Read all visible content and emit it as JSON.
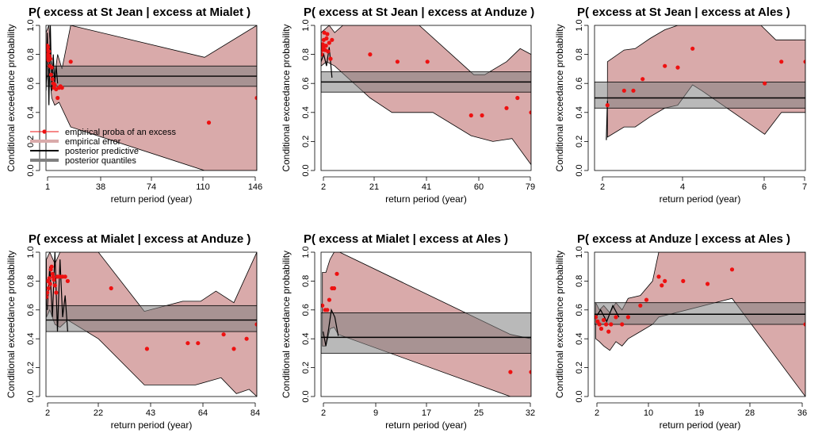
{
  "figure": {
    "ylabel": "Conditional exceedance probability",
    "xlabel": "return period (year)",
    "legend": [
      "empirical proba of an excess",
      "empirical error",
      "posterior predictive",
      "posterior quantiles"
    ],
    "colors": {
      "band": "#d9aaaa",
      "quantile_band": "#808080",
      "overlap": "#8c5050",
      "points": "#ee1111",
      "line": "#000000"
    }
  },
  "chart_data": [
    {
      "type": "scatter",
      "title": "P( excess at St Jean |   excess at Mialet )",
      "xticks": [
        "1",
        "38",
        "74",
        "110",
        "146"
      ],
      "yticks": [
        "0.0",
        "0.2",
        "0.4",
        "0.6",
        "0.8",
        "1.0"
      ],
      "xlim": [
        1,
        146
      ],
      "ylim": [
        0,
        1
      ],
      "points": [
        [
          1.2,
          0.78
        ],
        [
          1.5,
          0.83
        ],
        [
          1.8,
          0.86
        ],
        [
          2.1,
          0.8
        ],
        [
          2.4,
          0.85
        ],
        [
          2.7,
          0.76
        ],
        [
          3,
          0.82
        ],
        [
          3.3,
          0.79
        ],
        [
          3.6,
          0.72
        ],
        [
          4,
          0.77
        ],
        [
          4.5,
          0.66
        ],
        [
          5,
          0.71
        ],
        [
          5.5,
          0.63
        ],
        [
          6,
          0.6
        ],
        [
          6.5,
          0.57
        ],
        [
          7,
          0.59
        ],
        [
          8,
          0.56
        ],
        [
          9,
          0.5
        ],
        [
          10,
          0.57
        ],
        [
          11,
          0.58
        ],
        [
          12,
          0.57
        ],
        [
          18,
          0.75
        ],
        [
          113,
          0.33
        ],
        [
          146,
          0.5
        ]
      ],
      "band_upper": [
        [
          1,
          0.95
        ],
        [
          3,
          1.0
        ],
        [
          5,
          0.7
        ],
        [
          7,
          0.65
        ],
        [
          9,
          0.8
        ],
        [
          12,
          0.7
        ],
        [
          18,
          1.0
        ],
        [
          110,
          0.78
        ],
        [
          146,
          1.0
        ]
      ],
      "band_lower": [
        [
          1,
          0.6
        ],
        [
          3,
          0.7
        ],
        [
          5,
          0.5
        ],
        [
          7,
          0.45
        ],
        [
          10,
          0.47
        ],
        [
          18,
          0.3
        ],
        [
          110,
          0.0
        ],
        [
          146,
          0.0
        ]
      ],
      "quantile_band": [
        0.58,
        0.72
      ],
      "predictive": 0.65,
      "predictive_spike": [
        [
          1,
          0.55
        ],
        [
          2,
          0.95
        ],
        [
          3,
          0.45
        ],
        [
          4,
          1.0
        ],
        [
          5,
          0.55
        ],
        [
          6,
          0.8
        ],
        [
          7,
          0.6
        ],
        [
          8,
          0.72
        ],
        [
          9,
          0.6
        ]
      ],
      "legend": true
    },
    {
      "type": "scatter",
      "title": "P( excess at St Jean |   excess at Anduze )",
      "xticks": [
        "2",
        "21",
        "41",
        "60",
        "79"
      ],
      "yticks": [
        "0.0",
        "0.2",
        "0.4",
        "0.6",
        "0.8",
        "1.0"
      ],
      "xlim": [
        2,
        79
      ],
      "ylim": [
        0,
        1
      ],
      "points": [
        [
          2.2,
          0.8
        ],
        [
          2.4,
          0.83
        ],
        [
          2.6,
          0.87
        ],
        [
          2.8,
          0.85
        ],
        [
          3,
          0.9
        ],
        [
          3.2,
          0.95
        ],
        [
          3.5,
          0.83
        ],
        [
          3.8,
          0.86
        ],
        [
          4,
          0.91
        ],
        [
          4.3,
          0.94
        ],
        [
          4.6,
          0.82
        ],
        [
          5,
          0.88
        ],
        [
          5.5,
          0.77
        ],
        [
          6,
          0.9
        ],
        [
          20,
          0.8
        ],
        [
          30,
          0.75
        ],
        [
          41,
          0.75
        ],
        [
          57,
          0.38
        ],
        [
          61,
          0.38
        ],
        [
          70,
          0.43
        ],
        [
          74,
          0.5
        ],
        [
          79,
          0.4
        ]
      ],
      "band_upper": [
        [
          2,
          0.95
        ],
        [
          5,
          1.0
        ],
        [
          7,
          0.95
        ],
        [
          10,
          1.0
        ],
        [
          38,
          1.0
        ],
        [
          58,
          0.66
        ],
        [
          62,
          0.66
        ],
        [
          70,
          0.75
        ],
        [
          75,
          0.84
        ],
        [
          79,
          0.8
        ]
      ],
      "band_lower": [
        [
          2,
          0.72
        ],
        [
          4,
          0.75
        ],
        [
          7,
          0.72
        ],
        [
          20,
          0.5
        ],
        [
          28,
          0.4
        ],
        [
          43,
          0.4
        ],
        [
          57,
          0.24
        ],
        [
          65,
          0.2
        ],
        [
          72,
          0.22
        ],
        [
          79,
          0.04
        ]
      ],
      "quantile_band": [
        0.54,
        0.68
      ],
      "predictive": 0.61,
      "predictive_spike": [
        [
          2,
          0.75
        ],
        [
          3,
          0.8
        ],
        [
          4,
          0.72
        ],
        [
          5,
          0.85
        ],
        [
          6,
          0.64
        ]
      ],
      "legend": false
    },
    {
      "type": "scatter",
      "title": "P( excess at St Jean |   excess at Ales )",
      "xticks": [
        "2",
        "4",
        "6",
        "7"
      ],
      "yticks": [
        "0.0",
        "0.2",
        "0.4",
        "0.6",
        "0.8",
        "1.0"
      ],
      "xlim": [
        1.3,
        7
      ],
      "ylim": [
        0,
        1
      ],
      "points": [
        [
          1.65,
          0.45
        ],
        [
          2.1,
          0.55
        ],
        [
          2.35,
          0.55
        ],
        [
          2.6,
          0.63
        ],
        [
          3.2,
          0.72
        ],
        [
          3.55,
          0.71
        ],
        [
          3.95,
          0.84
        ],
        [
          5.9,
          0.6
        ],
        [
          6.35,
          0.75
        ],
        [
          7,
          0.75
        ]
      ],
      "band_upper": [
        [
          1.65,
          0.75
        ],
        [
          2.1,
          0.83
        ],
        [
          2.4,
          0.84
        ],
        [
          2.8,
          0.91
        ],
        [
          3.2,
          0.97
        ],
        [
          3.55,
          1.0
        ],
        [
          4,
          1.0
        ],
        [
          5.8,
          1.0
        ],
        [
          6.2,
          0.9
        ],
        [
          7,
          0.9
        ]
      ],
      "band_lower": [
        [
          1.65,
          0.23
        ],
        [
          2.1,
          0.3
        ],
        [
          2.4,
          0.3
        ],
        [
          2.8,
          0.37
        ],
        [
          3.2,
          0.43
        ],
        [
          3.55,
          0.45
        ],
        [
          3.95,
          0.59
        ],
        [
          4.2,
          0.55
        ],
        [
          5.9,
          0.25
        ],
        [
          6.35,
          0.4
        ],
        [
          7,
          0.4
        ]
      ],
      "quantile_band": [
        0.43,
        0.61
      ],
      "predictive": 0.5,
      "predictive_spike": [
        [
          1.62,
          0.21
        ],
        [
          1.65,
          0.48
        ]
      ],
      "legend": false
    },
    {
      "type": "scatter",
      "title": "P( excess at Mialet |   excess at Anduze )",
      "xticks": [
        "2",
        "22",
        "43",
        "64",
        "84"
      ],
      "yticks": [
        "0.0",
        "0.2",
        "0.4",
        "0.6",
        "0.8",
        "1.0"
      ],
      "xlim": [
        1.5,
        84
      ],
      "ylim": [
        0,
        1
      ],
      "points": [
        [
          1.7,
          0.69
        ],
        [
          2,
          0.72
        ],
        [
          2.2,
          0.8
        ],
        [
          2.5,
          0.75
        ],
        [
          2.8,
          0.82
        ],
        [
          3.1,
          0.78
        ],
        [
          3.4,
          0.88
        ],
        [
          3.7,
          0.9
        ],
        [
          4,
          0.85
        ],
        [
          4.3,
          0.83
        ],
        [
          4.6,
          0.81
        ],
        [
          5,
          0.77
        ],
        [
          5.5,
          0.72
        ],
        [
          6,
          0.83
        ],
        [
          7,
          0.83
        ],
        [
          8,
          0.83
        ],
        [
          9,
          0.83
        ],
        [
          10,
          0.8
        ],
        [
          27,
          0.75
        ],
        [
          41,
          0.33
        ],
        [
          57,
          0.37
        ],
        [
          61,
          0.37
        ],
        [
          71,
          0.43
        ],
        [
          75,
          0.33
        ],
        [
          80,
          0.4
        ],
        [
          84,
          0.5
        ]
      ],
      "band_upper": [
        [
          1.7,
          0.95
        ],
        [
          3,
          1.0
        ],
        [
          5,
          0.92
        ],
        [
          7,
          1.0
        ],
        [
          10,
          1.0
        ],
        [
          22,
          1.0
        ],
        [
          40,
          0.59
        ],
        [
          55,
          0.66
        ],
        [
          62,
          0.66
        ],
        [
          68,
          0.73
        ],
        [
          75,
          0.65
        ],
        [
          84,
          1.0
        ]
      ],
      "band_lower": [
        [
          1.7,
          0.55
        ],
        [
          3,
          0.6
        ],
        [
          5,
          0.5
        ],
        [
          7,
          0.48
        ],
        [
          10,
          0.53
        ],
        [
          22,
          0.4
        ],
        [
          40,
          0.08
        ],
        [
          60,
          0.08
        ],
        [
          70,
          0.13
        ],
        [
          76,
          0.02
        ],
        [
          81,
          0.05
        ],
        [
          84,
          0.0
        ]
      ],
      "quantile_band": [
        0.45,
        0.63
      ],
      "predictive": 0.53,
      "predictive_spike": [
        [
          2,
          0.6
        ],
        [
          3,
          0.9
        ],
        [
          4,
          0.55
        ],
        [
          5,
          1.0
        ],
        [
          6,
          0.45
        ],
        [
          7,
          0.95
        ],
        [
          8,
          0.55
        ],
        [
          9,
          0.7
        ],
        [
          10,
          0.45
        ]
      ],
      "legend": false
    },
    {
      "type": "scatter",
      "title": "P( excess at Mialet |   excess at Ales )",
      "xticks": [
        "2",
        "9",
        "17",
        "25",
        "32"
      ],
      "yticks": [
        "0.0",
        "0.2",
        "0.4",
        "0.6",
        "0.8",
        "1.0"
      ],
      "xlim": [
        1.5,
        32
      ],
      "ylim": [
        0,
        1
      ],
      "points": [
        [
          1.7,
          0.63
        ],
        [
          2.1,
          0.6
        ],
        [
          2.4,
          0.6
        ],
        [
          2.7,
          0.67
        ],
        [
          3.1,
          0.75
        ],
        [
          3.4,
          0.75
        ],
        [
          3.8,
          0.85
        ],
        [
          29,
          0.17
        ],
        [
          32,
          0.17
        ]
      ],
      "band_upper": [
        [
          1.7,
          0.86
        ],
        [
          2.2,
          0.86
        ],
        [
          2.8,
          0.95
        ],
        [
          3.4,
          1.0
        ],
        [
          4.2,
          1.0
        ],
        [
          29,
          0.43
        ],
        [
          32,
          0.4
        ]
      ],
      "band_lower": [
        [
          1.7,
          0.35
        ],
        [
          2.2,
          0.35
        ],
        [
          2.8,
          0.47
        ],
        [
          3.4,
          0.48
        ],
        [
          4,
          0.43
        ],
        [
          29,
          0.0
        ],
        [
          32,
          0.0
        ]
      ],
      "quantile_band": [
        0.3,
        0.58
      ],
      "predictive": 0.41,
      "predictive_spike": [
        [
          1.8,
          0.45
        ],
        [
          2.2,
          0.35
        ],
        [
          2.6,
          0.47
        ],
        [
          3,
          0.6
        ],
        [
          3.5,
          0.55
        ],
        [
          4,
          0.42
        ]
      ],
      "legend": false
    },
    {
      "type": "scatter",
      "title": "P( excess at Anduze |   excess at Ales )",
      "xticks": [
        "2",
        "10",
        "19",
        "28",
        "36"
      ],
      "yticks": [
        "0.0",
        "0.2",
        "0.4",
        "0.6",
        "0.8",
        "1.0"
      ],
      "xlim": [
        1.5,
        36
      ],
      "ylim": [
        0,
        1
      ],
      "points": [
        [
          1.7,
          0.55
        ],
        [
          2,
          0.52
        ],
        [
          2.3,
          0.5
        ],
        [
          2.6,
          0.47
        ],
        [
          3,
          0.53
        ],
        [
          3.4,
          0.5
        ],
        [
          3.8,
          0.45
        ],
        [
          4.2,
          0.5
        ],
        [
          5,
          0.55
        ],
        [
          6,
          0.5
        ],
        [
          7,
          0.55
        ],
        [
          9,
          0.63
        ],
        [
          10,
          0.67
        ],
        [
          12,
          0.83
        ],
        [
          12.5,
          0.77
        ],
        [
          13,
          0.8
        ],
        [
          16,
          0.8
        ],
        [
          20,
          0.78
        ],
        [
          24,
          0.88
        ],
        [
          36,
          0.5
        ]
      ],
      "band_upper": [
        [
          1.7,
          0.65
        ],
        [
          2.3,
          0.6
        ],
        [
          3,
          0.63
        ],
        [
          4,
          0.58
        ],
        [
          5,
          0.65
        ],
        [
          6,
          0.6
        ],
        [
          7,
          0.68
        ],
        [
          9,
          0.7
        ],
        [
          11,
          0.8
        ],
        [
          12,
          1.0
        ],
        [
          36,
          1.0
        ]
      ],
      "band_lower": [
        [
          1.7,
          0.4
        ],
        [
          2.3,
          0.38
        ],
        [
          3,
          0.35
        ],
        [
          4,
          0.32
        ],
        [
          5,
          0.38
        ],
        [
          6,
          0.35
        ],
        [
          7,
          0.4
        ],
        [
          9,
          0.45
        ],
        [
          11,
          0.5
        ],
        [
          12,
          0.55
        ],
        [
          24,
          0.68
        ],
        [
          36,
          0.0
        ]
      ],
      "quantile_band": [
        0.5,
        0.65
      ],
      "predictive": 0.57,
      "predictive_spike": [
        [
          1.7,
          0.55
        ],
        [
          2.5,
          0.6
        ],
        [
          3.5,
          0.52
        ],
        [
          4.5,
          0.63
        ],
        [
          5.5,
          0.55
        ]
      ],
      "legend": false
    }
  ]
}
